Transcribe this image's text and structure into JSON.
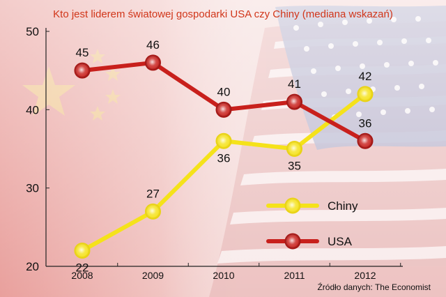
{
  "chart_data": {
    "type": "line",
    "title": "Kto jest liderem światowej gospodarki USA czy Chiny (mediana wskazań)",
    "categories": [
      "2008",
      "2009",
      "2010",
      "2011",
      "2012"
    ],
    "series": [
      {
        "name": "Chiny",
        "values": [
          22,
          27,
          36,
          35,
          42
        ],
        "color": "#f5e21a"
      },
      {
        "name": "USA",
        "values": [
          45,
          46,
          40,
          41,
          36
        ],
        "color": "#c8201c"
      }
    ],
    "yticks": [
      20,
      30,
      40,
      50
    ],
    "ylim": [
      20,
      50
    ],
    "legend_position": "bottom-right",
    "grid": false,
    "source": "Źródło danych: The Economist",
    "title_color": "#d1361a",
    "background": "china-usa-flag-blend"
  }
}
